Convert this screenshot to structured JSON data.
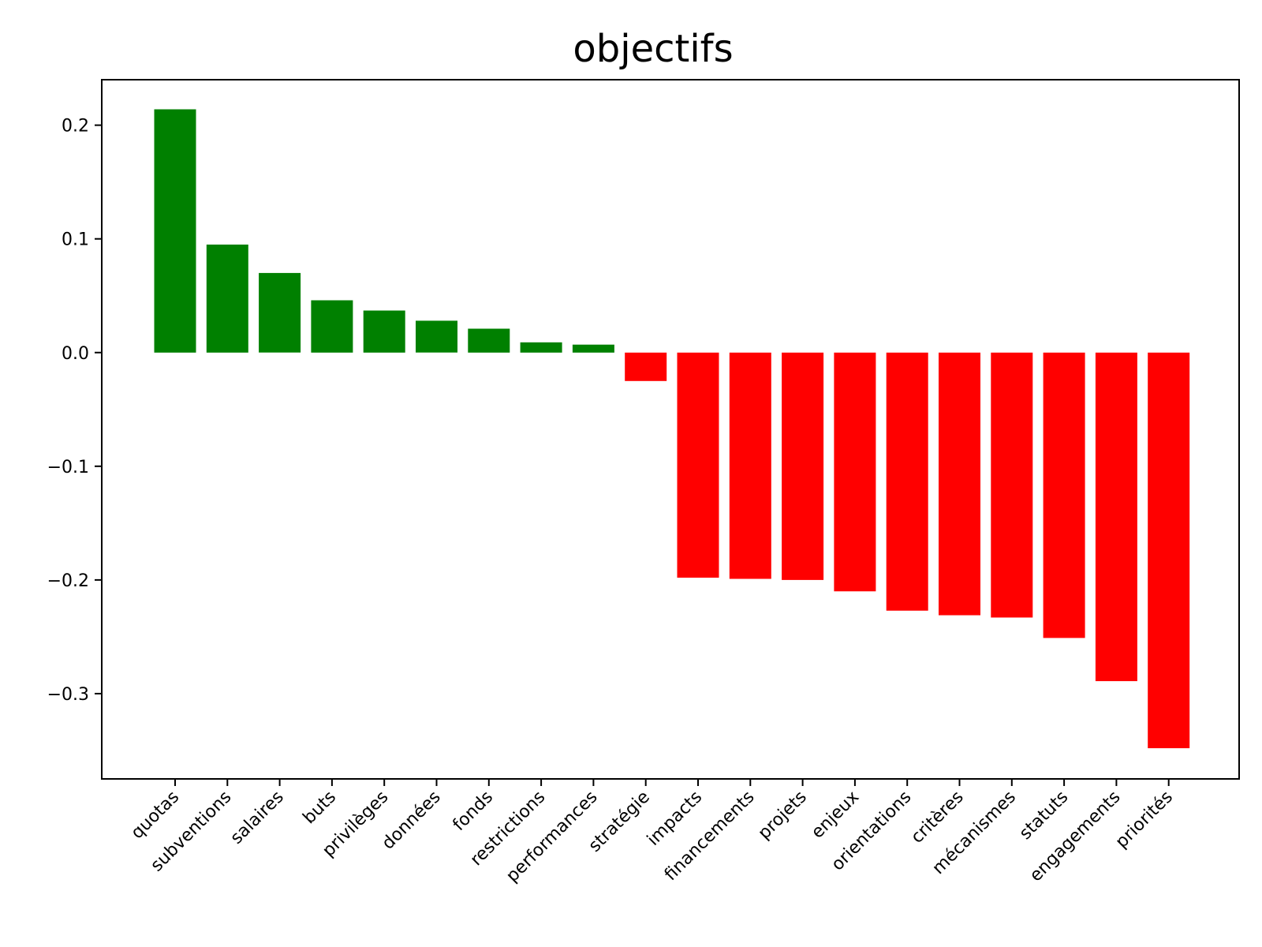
{
  "chart_data": {
    "type": "bar",
    "title": "objectifs",
    "xlabel": "",
    "ylabel": "",
    "ylim": [
      -0.375,
      0.24
    ],
    "yticks": [
      {
        "value": 0.2,
        "label": "0.2"
      },
      {
        "value": 0.1,
        "label": "0.1"
      },
      {
        "value": 0.0,
        "label": "0.0"
      },
      {
        "value": -0.1,
        "label": "−0.1"
      },
      {
        "value": -0.2,
        "label": "−0.2"
      },
      {
        "value": -0.3,
        "label": "−0.3"
      }
    ],
    "categories": [
      "quotas",
      "subventions",
      "salaires",
      "buts",
      "privilèges",
      "données",
      "fonds",
      "restrictions",
      "performances",
      "stratégie",
      "impacts",
      "financements",
      "projets",
      "enjeux",
      "orientations",
      "critères",
      "mécanismes",
      "statuts",
      "engagements",
      "priorités"
    ],
    "values": [
      0.214,
      0.095,
      0.07,
      0.046,
      0.037,
      0.028,
      0.021,
      0.009,
      0.007,
      -0.025,
      -0.198,
      -0.199,
      -0.2,
      -0.21,
      -0.227,
      -0.231,
      -0.233,
      -0.251,
      -0.289,
      -0.348
    ],
    "grid": false,
    "legend": "none",
    "colors": {
      "positive": "#008000",
      "negative": "#ff0000",
      "axis": "#000000"
    }
  }
}
